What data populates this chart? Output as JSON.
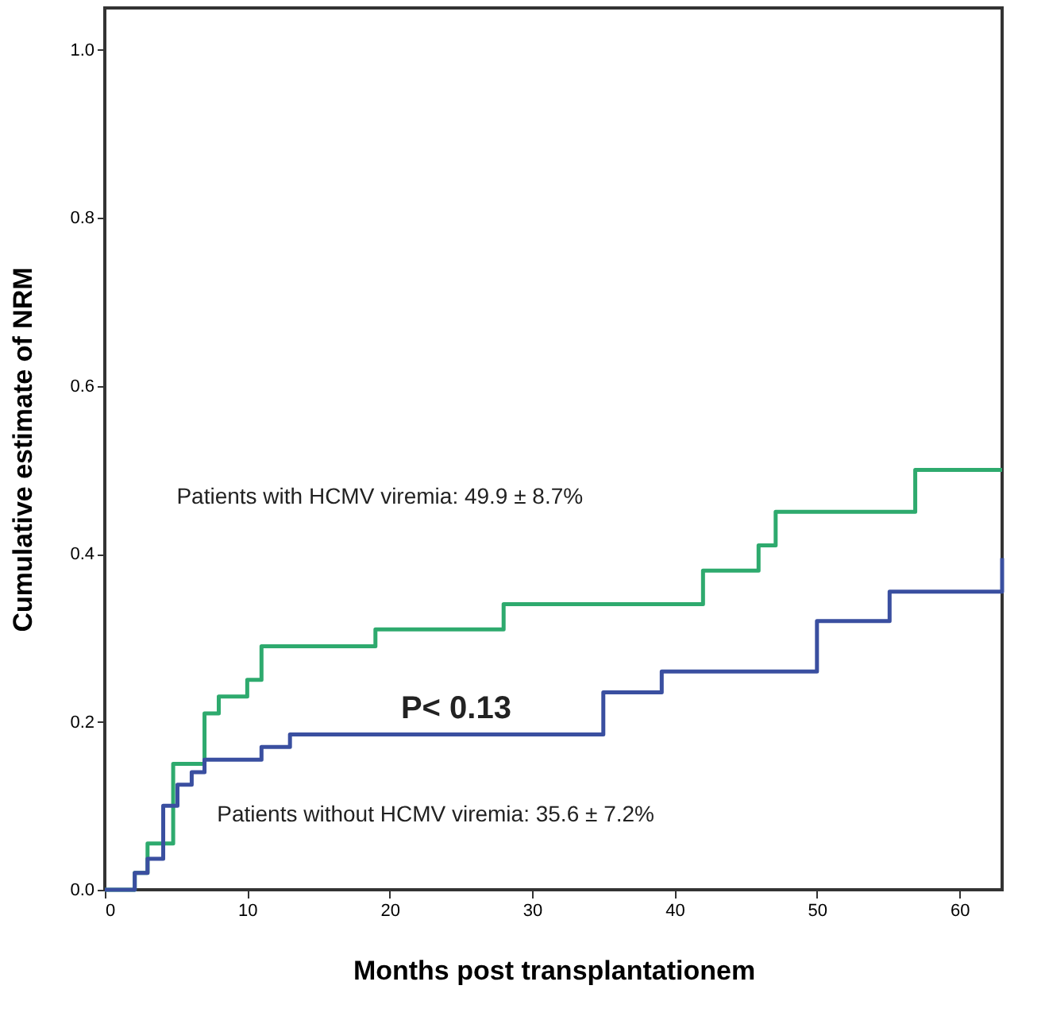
{
  "chart_data": {
    "type": "step",
    "xlabel": "Months post transplantationem",
    "ylabel": "Cumulative estimate of NRM",
    "xlim": [
      0,
      63
    ],
    "ylim": [
      0,
      1.05
    ],
    "xticks": [
      0,
      10,
      20,
      30,
      40,
      50,
      60
    ],
    "yticks": [
      {
        "value": 0,
        "label": "0.0"
      },
      {
        "value": 0.2,
        "label": "0.2"
      },
      {
        "value": 0.4,
        "label": "0.4"
      },
      {
        "value": 0.6,
        "label": "0.6"
      },
      {
        "value": 0.8,
        "label": "0.8"
      },
      {
        "value": 1,
        "label": "1.0"
      }
    ],
    "grid": false,
    "marker": "none",
    "line_style": "solid",
    "series": [
      {
        "color": "#2eaa6e",
        "x": [
          0,
          2.1,
          3,
          4.8,
          7,
          8,
          10,
          11,
          19,
          28,
          42,
          45.9,
          47.1,
          56.9,
          63
        ],
        "values": [
          0,
          0.02,
          0.055,
          0.15,
          0.21,
          0.23,
          0.25,
          0.29,
          0.31,
          0.34,
          0.38,
          0.41,
          0.45,
          0.5,
          0.5
        ]
      },
      {
        "color": "#3a4fa0",
        "x": [
          0,
          2.1,
          3,
          4.1,
          5.1,
          6.1,
          7,
          11,
          13,
          35,
          39.1,
          50,
          55.1,
          62.8,
          63
        ],
        "values": [
          0,
          0.02,
          0.037,
          0.1,
          0.125,
          0.14,
          0.155,
          0.17,
          0.185,
          0.235,
          0.26,
          0.32,
          0.355,
          0.355,
          0.395
        ]
      }
    ],
    "annotations": [
      "Patients with HCMV viremia: 49.9 ± 8.7%",
      "P< 0.13",
      "Patients without HCMV viremia: 35.6 ± 7.2%"
    ]
  }
}
